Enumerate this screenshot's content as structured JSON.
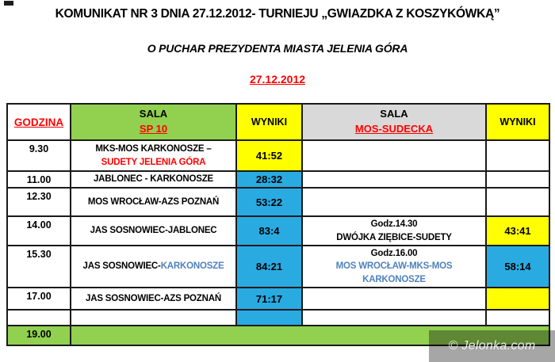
{
  "header": {
    "title": "KOMUNIKAT NR 3 DNIA 27.12.2012- TURNIEJU „GWIAZDKA Z KOSZYKÓWKĄ”",
    "subtitle": "O PUCHAR PREZYDENTA MIASTA JELENIA GÓRA",
    "date": "27.12.2012"
  },
  "colors": {
    "accent_red": "#ff0000",
    "green": "#92d050",
    "yellow": "#ffff00",
    "blue_cell": "#29abe2",
    "gray_header": "#d9d9d9",
    "blue_text": "#4f81bd"
  },
  "table": {
    "headers": {
      "godzina": "GODZINA",
      "sala1": "SALA",
      "hall1": "SP 10",
      "wyniki1": "WYNIKI",
      "sala2": "SALA",
      "hall2": "MOS-SUDECKA",
      "wyniki2": "WYNIKI"
    },
    "rows": [
      {
        "time": "9.30",
        "hall1_lines": [
          [
            {
              "text": "MKS-MOS KARKONOSZE –",
              "color": "black"
            }
          ],
          [
            {
              "text": "SUDETY JELENIA GÓRA",
              "color": "red"
            }
          ]
        ],
        "result1": {
          "text": "41:52",
          "variant": "yellow"
        },
        "hall2_lines": [],
        "result2": {
          "text": "",
          "variant": "white"
        }
      },
      {
        "time": "11.00",
        "hall1_lines": [
          [
            {
              "text": "JABLONEC - KARKONOSZE",
              "color": "black"
            }
          ]
        ],
        "result1": {
          "text": "28:32",
          "variant": "blue"
        },
        "hall2_lines": [],
        "result2": {
          "text": "",
          "variant": "white"
        }
      },
      {
        "time": "12.30",
        "hall1_lines": [
          [
            {
              "text": "MOS WROCŁAW-AZS POZNAŃ",
              "color": "black"
            }
          ]
        ],
        "result1": {
          "text": "53:22",
          "variant": "blue"
        },
        "hall2_lines": [],
        "result2": {
          "text": "",
          "variant": "white"
        }
      },
      {
        "time": "14.00",
        "hall1_lines": [
          [
            {
              "text": "JAS SOSNOWIEC-JABLONEC",
              "color": "black"
            }
          ]
        ],
        "result1": {
          "text": "83:4",
          "variant": "blue"
        },
        "hall2_lines": [
          [
            {
              "text": "Godz.14.30",
              "color": "black"
            }
          ],
          [
            {
              "text": "DWÓJKA ZIĘBICE-SUDETY",
              "color": "black"
            }
          ]
        ],
        "result2": {
          "text": "43:41",
          "variant": "yellow"
        }
      },
      {
        "time": "15.30",
        "hall1_lines": [
          [
            {
              "text": "JAS SOSNOWIEC-",
              "color": "black"
            },
            {
              "text": "KARKONOSZE",
              "color": "blue"
            }
          ]
        ],
        "result1": {
          "text": "84:21",
          "variant": "blue"
        },
        "hall2_lines": [
          [
            {
              "text": "Godz.16.00",
              "color": "black"
            }
          ],
          [
            {
              "text": "MOS WROCŁAW-MKS-MOS",
              "color": "blue"
            }
          ],
          [
            {
              "text": "KARKONOSZE",
              "color": "blue"
            }
          ]
        ],
        "result2": {
          "text": "58:14",
          "variant": "blue"
        }
      },
      {
        "time": "17.00",
        "hall1_lines": [
          [
            {
              "text": "JAS SOSNOWIEC-AZS POZNAŃ",
              "color": "black"
            }
          ]
        ],
        "result1": {
          "text": "71:17",
          "variant": "blue"
        },
        "hall2_lines": [],
        "result2": {
          "text": "",
          "variant": "yellow"
        }
      },
      {
        "time": "",
        "hall1_lines": [],
        "result1": {
          "text": "",
          "variant": "blue"
        },
        "hall2_lines": [],
        "result2": {
          "text": "",
          "variant": "white"
        }
      }
    ],
    "final_row": {
      "time": "19.00"
    }
  },
  "footer": {
    "watermark": "© Jelonka.com"
  }
}
